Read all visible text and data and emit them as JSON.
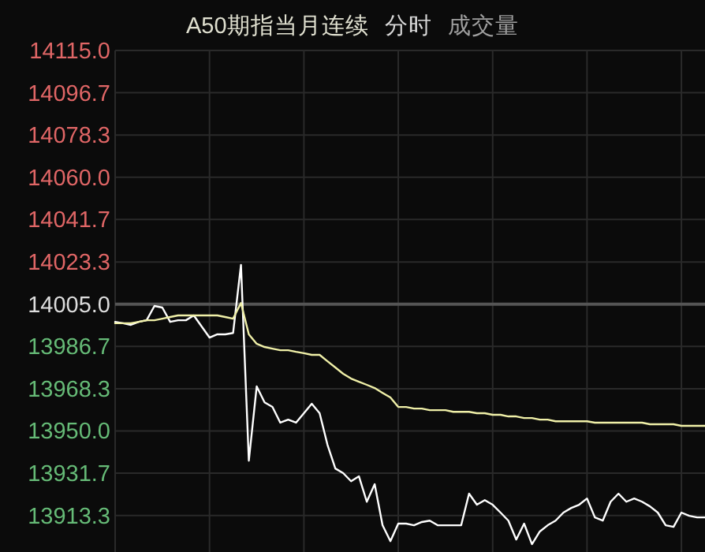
{
  "chart_data": {
    "type": "line",
    "title": "A50期指当月连续",
    "annotations": [
      "分时",
      "成交量"
    ],
    "categories": [
      null,
      null,
      null,
      null,
      null,
      null,
      null,
      null,
      null,
      null,
      null,
      null,
      null,
      null,
      null,
      null,
      null,
      null,
      null,
      null,
      null,
      null,
      null,
      null,
      null,
      null,
      null,
      null,
      null,
      null,
      null,
      null,
      null,
      null,
      null,
      null,
      null,
      null,
      null,
      null,
      null,
      null,
      null,
      null,
      null,
      null,
      null,
      null,
      null,
      null,
      null,
      null,
      null,
      null,
      null,
      null,
      null,
      null,
      null,
      null,
      null,
      null,
      null,
      null,
      null,
      null,
      null,
      null,
      null,
      null,
      null,
      null,
      null,
      null,
      null,
      null
    ],
    "series": [
      {
        "color": "#ffffff",
        "values": [
          13997.3,
          13996.7,
          13996.0,
          13997.3,
          13998.0,
          14004.2,
          14003.5,
          13997.3,
          13998.0,
          13998.0,
          14000.1,
          13995.3,
          13990.5,
          13991.9,
          13991.9,
          13992.5,
          14022.0,
          13937.1,
          13969.3,
          13962.4,
          13960.4,
          13953.6,
          13954.9,
          13953.6,
          13957.7,
          13961.8,
          13957.7,
          13944.0,
          13933.7,
          13931.7,
          13928.2,
          13930.3,
          13919.3,
          13926.9,
          13909.1,
          13902.2,
          13909.8,
          13909.8,
          13909.1,
          13910.5,
          13911.1,
          13909.1,
          13909.1,
          13909.1,
          13909.1,
          13922.8,
          13918.0,
          13920.0,
          13918.0,
          13914.6,
          13911.1,
          13902.9,
          13909.8,
          13900.9,
          13906.4,
          13909.1,
          13911.1,
          13914.6,
          13916.6,
          13918.0,
          13920.7,
          13912.5,
          13911.1,
          13919.3,
          13922.8,
          13919.3,
          13920.7,
          13919.3,
          13917.3,
          13914.6,
          13909.1,
          13908.4,
          13914.6,
          13913.2,
          13912.5,
          13912.5
        ]
      },
      {
        "color": "#f0f0a8",
        "values": [
          13996.7,
          13996.7,
          13996.7,
          13997.3,
          13998.0,
          13998.0,
          13998.7,
          13999.4,
          14000.1,
          14000.1,
          14000.1,
          14000.1,
          14000.1,
          14000.1,
          13999.4,
          13998.7,
          14005.5,
          13991.9,
          13987.8,
          13986.4,
          13985.7,
          13985.0,
          13985.0,
          13984.3,
          13983.7,
          13983.0,
          13983.0,
          13980.2,
          13977.5,
          13974.8,
          13972.7,
          13971.3,
          13970.0,
          13968.6,
          13966.5,
          13964.5,
          13960.4,
          13960.4,
          13959.7,
          13959.7,
          13959.0,
          13959.0,
          13959.0,
          13958.3,
          13958.3,
          13958.3,
          13957.7,
          13957.7,
          13957.0,
          13957.0,
          13956.3,
          13956.3,
          13955.6,
          13955.6,
          13954.9,
          13954.9,
          13954.2,
          13954.2,
          13954.2,
          13954.2,
          13954.2,
          13953.6,
          13953.6,
          13953.6,
          13953.6,
          13953.6,
          13953.6,
          13953.6,
          13952.9,
          13952.9,
          13952.9,
          13952.9,
          13952.2,
          13952.2,
          13952.2,
          13952.2
        ]
      }
    ],
    "ylim": [
      13897.5,
      14115
    ],
    "yticks": [
      {
        "value": 14115,
        "label": "14115.0"
      },
      {
        "value": 14096.7,
        "label": "14096.7"
      },
      {
        "value": 14078.3,
        "label": "14078.3"
      },
      {
        "value": 14060,
        "label": "14060.0"
      },
      {
        "value": 14041.7,
        "label": "14041.7"
      },
      {
        "value": 14023.3,
        "label": "14023.3"
      },
      {
        "value": 14005,
        "label": "14005.0"
      },
      {
        "value": 13986.7,
        "label": "13986.7"
      },
      {
        "value": 13968.3,
        "label": "13968.3"
      },
      {
        "value": 13950,
        "label": "13950.0"
      },
      {
        "value": 13931.7,
        "label": "13931.7"
      },
      {
        "value": 13913.3,
        "label": "13913.3"
      }
    ],
    "ref_lines": [
      {
        "axis": "y",
        "value": 14005,
        "color": "#555555"
      }
    ],
    "grid": true,
    "marker": "none",
    "line_style": "solid"
  }
}
